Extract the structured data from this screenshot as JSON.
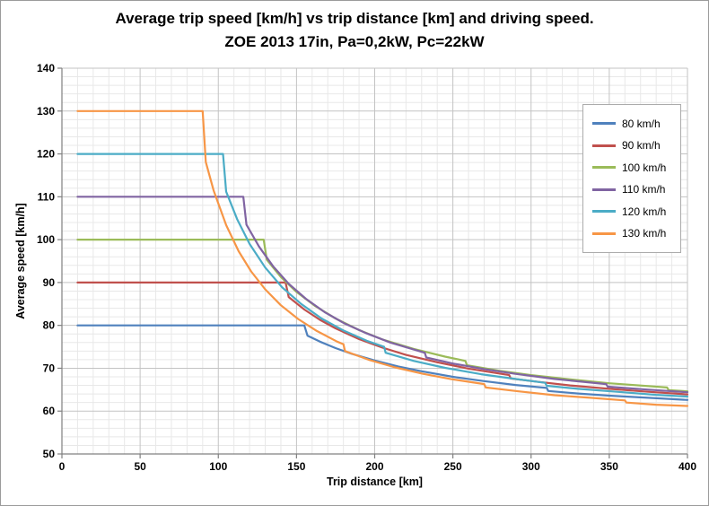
{
  "chart": {
    "title_line1": "Average trip speed [km/h] vs trip distance [km] and driving speed.",
    "title_line2": "ZOE 2013 17in, Pa=0,2kW, Pc=22kW",
    "xlabel": "Trip distance [km]",
    "ylabel": "Average speed [km/h]"
  },
  "chart_data": {
    "type": "line",
    "title": "Average trip speed [km/h] vs trip distance [km] and driving speed.",
    "subtitle": "ZOE 2013 17in, Pa=0,2kW, Pc=22kW",
    "xlabel": "Trip distance [km]",
    "ylabel": "Average speed [km/h]",
    "x_axis": {
      "min": 0,
      "max": 400,
      "major": 50,
      "minor": 10
    },
    "y_axis": {
      "min": 50,
      "max": 140,
      "major": 10,
      "minor": 2
    },
    "grid": "major+minor",
    "legend": {
      "position": "inside-top-right"
    },
    "colors": {
      "grid_major": "#C3C3C3",
      "grid_minor": "#E8E8E8",
      "axis": "#808080",
      "text": "#000000",
      "background": "#FFFFFF",
      "border": "#9B9B9B"
    },
    "series": [
      {
        "name": "80 km/h",
        "color": "#4F81BD",
        "points": [
          [
            10,
            80
          ],
          [
            155,
            80
          ],
          [
            157,
            77.6
          ],
          [
            165,
            76.2
          ],
          [
            175,
            74.7
          ],
          [
            185,
            73.4
          ],
          [
            200,
            71.8
          ],
          [
            215,
            70.4
          ],
          [
            230,
            69.3
          ],
          [
            250,
            68
          ],
          [
            270,
            67
          ],
          [
            290,
            66.1
          ],
          [
            310,
            65.4
          ],
          [
            311,
            64.7
          ],
          [
            330,
            64.1
          ],
          [
            350,
            63.6
          ],
          [
            375,
            63.1
          ],
          [
            400,
            62.6
          ]
        ]
      },
      {
        "name": "90 km/h",
        "color": "#C0504D",
        "points": [
          [
            10,
            90
          ],
          [
            143,
            90
          ],
          [
            145,
            86.6
          ],
          [
            155,
            83.7
          ],
          [
            165,
            81.3
          ],
          [
            175,
            79.3
          ],
          [
            190,
            76.8
          ],
          [
            205,
            74.8
          ],
          [
            220,
            73.1
          ],
          [
            240,
            71.4
          ],
          [
            260,
            69.9
          ],
          [
            286,
            68.4
          ],
          [
            287,
            67.6
          ],
          [
            305,
            66.8
          ],
          [
            325,
            66
          ],
          [
            350,
            65.2
          ],
          [
            375,
            64.5
          ],
          [
            400,
            63.9
          ]
        ]
      },
      {
        "name": "100 km/h",
        "color": "#9BBB59",
        "points": [
          [
            10,
            100
          ],
          [
            129,
            100
          ],
          [
            131,
            95.3
          ],
          [
            140,
            91.3
          ],
          [
            150,
            87.8
          ],
          [
            162,
            84.5
          ],
          [
            175,
            81.6
          ],
          [
            190,
            78.9
          ],
          [
            205,
            76.7
          ],
          [
            225,
            74.5
          ],
          [
            245,
            72.7
          ],
          [
            258,
            71.7
          ],
          [
            259,
            70.7
          ],
          [
            280,
            69.4
          ],
          [
            300,
            68.4
          ],
          [
            325,
            67.4
          ],
          [
            350,
            66.5
          ],
          [
            387,
            65.5
          ],
          [
            388,
            64.9
          ],
          [
            400,
            64.6
          ]
        ]
      },
      {
        "name": "110 km/h",
        "color": "#8064A2",
        "points": [
          [
            10,
            110
          ],
          [
            116,
            110
          ],
          [
            118,
            103.5
          ],
          [
            126,
            98.4
          ],
          [
            135,
            93.8
          ],
          [
            145,
            89.7
          ],
          [
            156,
            86.2
          ],
          [
            168,
            83.1
          ],
          [
            181,
            80.4
          ],
          [
            195,
            78.1
          ],
          [
            210,
            76
          ],
          [
            232,
            73.6
          ],
          [
            233,
            72.5
          ],
          [
            250,
            71.1
          ],
          [
            270,
            69.8
          ],
          [
            290,
            68.7
          ],
          [
            315,
            67.5
          ],
          [
            348,
            66.3
          ],
          [
            349,
            65.7
          ],
          [
            375,
            65
          ],
          [
            400,
            64.4
          ]
        ]
      },
      {
        "name": "120 km/h",
        "color": "#4BACC6",
        "points": [
          [
            10,
            120
          ],
          [
            103,
            120
          ],
          [
            105,
            111.2
          ],
          [
            112,
            104.8
          ],
          [
            120,
            99
          ],
          [
            130,
            93.5
          ],
          [
            141,
            88.8
          ],
          [
            153,
            85
          ],
          [
            166,
            81.6
          ],
          [
            180,
            78.8
          ],
          [
            195,
            76.4
          ],
          [
            206,
            75
          ],
          [
            207,
            73.6
          ],
          [
            225,
            71.7
          ],
          [
            245,
            70.1
          ],
          [
            268,
            68.6
          ],
          [
            290,
            67.5
          ],
          [
            309,
            66.6
          ],
          [
            310,
            65.9
          ],
          [
            330,
            65.2
          ],
          [
            355,
            64.5
          ],
          [
            380,
            63.8
          ],
          [
            400,
            63.4
          ]
        ]
      },
      {
        "name": "130 km/h",
        "color": "#F79646",
        "points": [
          [
            10,
            130
          ],
          [
            90,
            130
          ],
          [
            92,
            118.1
          ],
          [
            97,
            111.5
          ],
          [
            105,
            103.4
          ],
          [
            113,
            97.3
          ],
          [
            121,
            92.6
          ],
          [
            130,
            88.4
          ],
          [
            140,
            84.7
          ],
          [
            151,
            81.5
          ],
          [
            163,
            78.7
          ],
          [
            176,
            76.2
          ],
          [
            180,
            75.6
          ],
          [
            181,
            74
          ],
          [
            196,
            72
          ],
          [
            213,
            70.2
          ],
          [
            231,
            68.7
          ],
          [
            250,
            67.4
          ],
          [
            270,
            66.3
          ],
          [
            271,
            65.5
          ],
          [
            292,
            64.6
          ],
          [
            315,
            63.7
          ],
          [
            338,
            63.1
          ],
          [
            360,
            62.5
          ],
          [
            361,
            62
          ],
          [
            380,
            61.5
          ],
          [
            400,
            61.2
          ]
        ]
      }
    ]
  }
}
